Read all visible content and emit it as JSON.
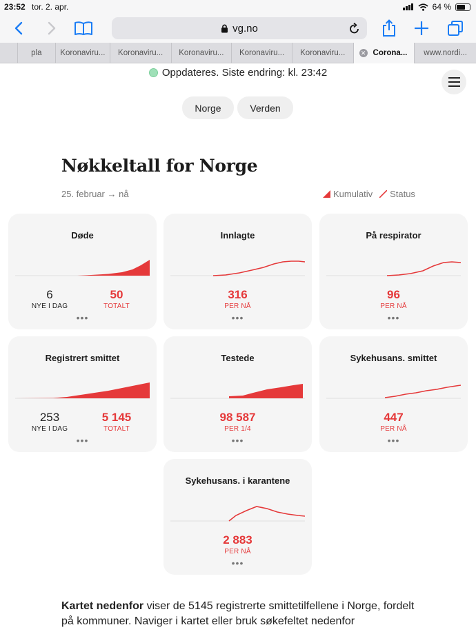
{
  "status_bar": {
    "time": "23:52",
    "date": "tor. 2. apr.",
    "battery": "64 %"
  },
  "browser": {
    "url": "vg.no",
    "icons": [
      "back-icon",
      "forward-icon",
      "bookmarks-icon",
      "lock-icon",
      "reload-icon",
      "share-icon",
      "new-tab-icon",
      "tabs-icon"
    ],
    "tabs": [
      {
        "label": ""
      },
      {
        "label": "pla"
      },
      {
        "label": "Koronaviru..."
      },
      {
        "label": "Koronaviru..."
      },
      {
        "label": "Koronaviru..."
      },
      {
        "label": "Koronaviru..."
      },
      {
        "label": "Koronaviru..."
      },
      {
        "label": "Corona...",
        "active": true
      },
      {
        "label": "www.nordi..."
      }
    ]
  },
  "page": {
    "update_text": "Oppdateres. Siste endring: kl. 23:42",
    "toggle": {
      "norge": "Norge",
      "verden": "Verden"
    },
    "heading": "Nøkkeltall for Norge",
    "range": "25. februar → nå",
    "legend": {
      "cumulative": "Kumulativ",
      "status": "Status"
    },
    "accent_color": "#e5393a",
    "cards": [
      {
        "title": "Døde",
        "left_value": "6",
        "left_label": "NYE I DAG",
        "right_value": "50",
        "right_label": "TOTALT",
        "chart": "area"
      },
      {
        "title": "Innlagte",
        "value": "316",
        "label": "PER NÅ",
        "chart": "line"
      },
      {
        "title": "På respirator",
        "value": "96",
        "label": "PER NÅ",
        "chart": "line"
      },
      {
        "title": "Registrert smittet",
        "left_value": "253",
        "left_label": "NYE I DAG",
        "right_value": "5 145",
        "right_label": "TOTALT",
        "chart": "area"
      },
      {
        "title": "Testede",
        "value": "98 587",
        "label": "PER 1/4",
        "chart": "area"
      },
      {
        "title": "Sykehusans. smittet",
        "value": "447",
        "label": "PER NÅ",
        "chart": "line"
      },
      {
        "title": "Sykehusans. i karantene",
        "value": "2 883",
        "label": "PER NÅ",
        "chart": "line"
      }
    ],
    "more_dots": "•••",
    "bottom": {
      "bold": "Kartet nedenfor",
      "text": " viser de 5145 registrerte smittetilfellene i Norge, fordelt på kommuner. Naviger i kartet eller bruk søkefeltet nedenfor"
    }
  }
}
